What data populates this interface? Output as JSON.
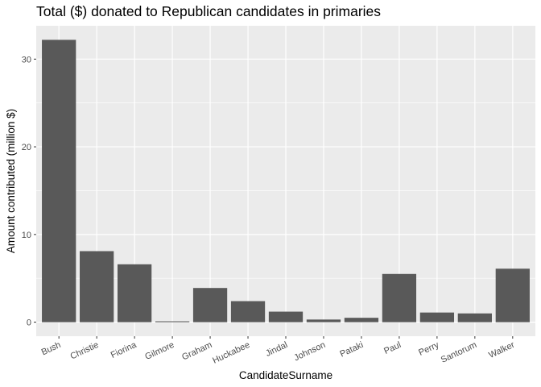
{
  "chart_data": {
    "type": "bar",
    "title": "Total ($) donated to Republican candidates in primaries",
    "xlabel": "CandidateSurname",
    "ylabel": "Amount contributed (million $)",
    "categories": [
      "Bush",
      "Christie",
      "Fiorina",
      "Gilmore",
      "Graham",
      "Huckabee",
      "Jindal",
      "Johnson",
      "Pataki",
      "Paul",
      "Perry",
      "Santorum",
      "Walker"
    ],
    "values": [
      32.2,
      8.1,
      6.6,
      0.1,
      3.9,
      2.4,
      1.2,
      0.3,
      0.5,
      5.5,
      1.1,
      1.0,
      6.1
    ],
    "yticks": [
      0,
      10,
      20,
      30
    ],
    "ylim": [
      -1.6,
      33.8
    ],
    "grid": true,
    "colors": {
      "panel": "#ebebeb",
      "bar": "#595959",
      "grid_major": "#ffffff",
      "tick": "#333333"
    }
  }
}
